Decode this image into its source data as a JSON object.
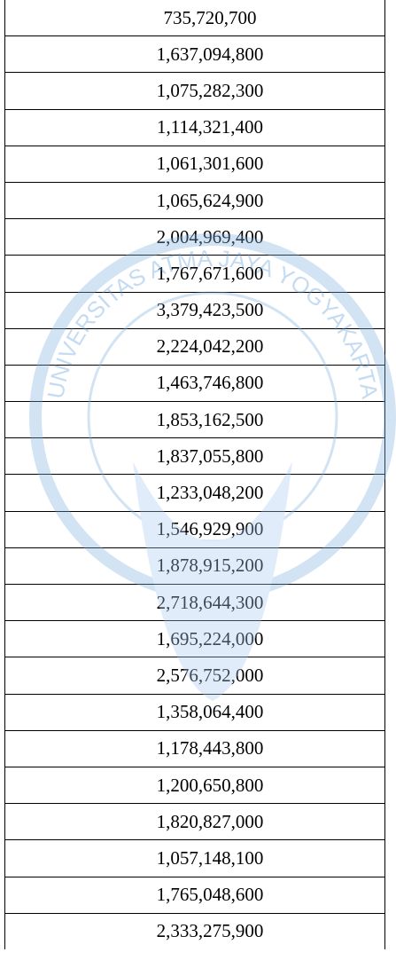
{
  "watermark": "UNIVERSITAS ATMA JAYA YOGYAKARTA",
  "table": {
    "rows": [
      [
        "735,720,700"
      ],
      [
        "1,637,094,800"
      ],
      [
        "1,075,282,300"
      ],
      [
        "1,114,321,400"
      ],
      [
        "1,061,301,600"
      ],
      [
        "1,065,624,900"
      ],
      [
        "2,004,969,400"
      ],
      [
        "1,767,671,600"
      ],
      [
        "3,379,423,500"
      ],
      [
        "2,224,042,200"
      ],
      [
        "1,463,746,800"
      ],
      [
        "1,853,162,500"
      ],
      [
        "1,837,055,800"
      ],
      [
        "1,233,048,200"
      ],
      [
        "1,546,929,900"
      ],
      [
        "1,878,915,200"
      ],
      [
        "2,718,644,300"
      ],
      [
        "1,695,224,000"
      ],
      [
        "2,576,752,000"
      ],
      [
        "1,358,064,400"
      ],
      [
        "1,178,443,800"
      ],
      [
        "1,200,650,800"
      ],
      [
        "1,820,827,000"
      ],
      [
        "1,057,148,100"
      ],
      [
        "1,765,048,600"
      ],
      [
        "2,333,275,900"
      ]
    ]
  }
}
